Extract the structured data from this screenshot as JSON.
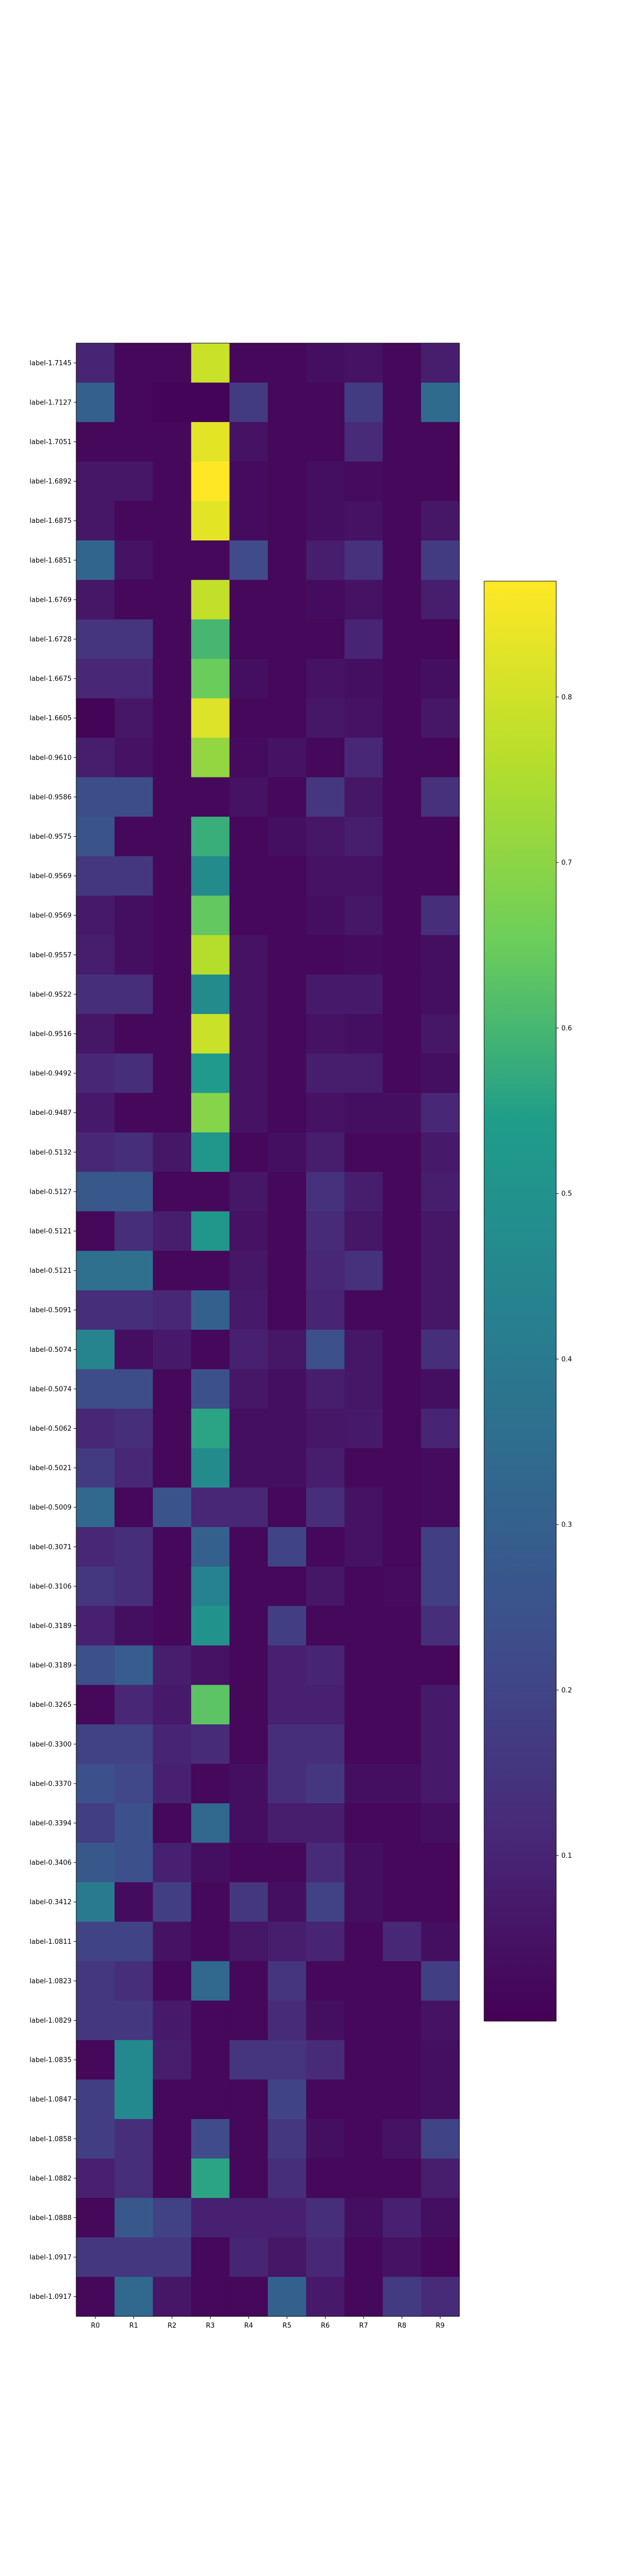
{
  "chart_data": {
    "type": "heatmap",
    "title": "",
    "xlabel": "",
    "ylabel": "",
    "colormap": "viridis",
    "colorbar": {
      "min": 0.0,
      "max": 0.87,
      "ticks": [
        "0.1",
        "0.2",
        "0.3",
        "0.4",
        "0.5",
        "0.6",
        "0.7",
        "0.8"
      ]
    },
    "columns": [
      "R0",
      "R1",
      "R2",
      "R3",
      "R4",
      "R5",
      "R6",
      "R7",
      "R8",
      "R9"
    ],
    "rows": [
      "label-1.7145",
      "label-1.7127",
      "label-1.7051",
      "label-1.6892",
      "label-1.6875",
      "label-1.6851",
      "label-1.6769",
      "label-1.6728",
      "label-1.6675",
      "label-1.6605",
      "label-0.9610",
      "label-0.9586",
      "label-0.9575",
      "label-0.9569",
      "label-0.9569",
      "label-0.9557",
      "label-0.9522",
      "label-0.9516",
      "label-0.9492",
      "label-0.9487",
      "label-0.5132",
      "label-0.5127",
      "label-0.5121",
      "label-0.5121",
      "label-0.5091",
      "label-0.5074",
      "label-0.5074",
      "label-0.5062",
      "label-0.5021",
      "label-0.5009",
      "label-0.3071",
      "label-0.3106",
      "label-0.3189",
      "label-0.3189",
      "label-0.3265",
      "label-0.3300",
      "label-0.3370",
      "label-0.3394",
      "label-0.3406",
      "label-0.3412",
      "label-1.0811",
      "label-1.0823",
      "label-1.0829",
      "label-1.0835",
      "label-1.0847",
      "label-1.0858",
      "label-1.0882",
      "label-1.0888",
      "label-1.0917",
      "label-1.0917"
    ],
    "values": [
      [
        0.1,
        0.02,
        0.02,
        0.79,
        0.02,
        0.02,
        0.04,
        0.05,
        0.02,
        0.08
      ],
      [
        0.3,
        0.02,
        0.01,
        0.01,
        0.17,
        0.02,
        0.02,
        0.17,
        0.02,
        0.34
      ],
      [
        0.02,
        0.02,
        0.02,
        0.83,
        0.05,
        0.02,
        0.02,
        0.12,
        0.02,
        0.02
      ],
      [
        0.06,
        0.06,
        0.02,
        0.87,
        0.03,
        0.02,
        0.04,
        0.03,
        0.02,
        0.02
      ],
      [
        0.06,
        0.02,
        0.02,
        0.83,
        0.03,
        0.02,
        0.04,
        0.05,
        0.02,
        0.06
      ],
      [
        0.32,
        0.05,
        0.02,
        0.02,
        0.22,
        0.02,
        0.08,
        0.14,
        0.02,
        0.17
      ],
      [
        0.06,
        0.02,
        0.02,
        0.78,
        0.02,
        0.02,
        0.03,
        0.05,
        0.02,
        0.08
      ],
      [
        0.15,
        0.15,
        0.02,
        0.6,
        0.02,
        0.02,
        0.02,
        0.1,
        0.02,
        0.02
      ],
      [
        0.11,
        0.11,
        0.02,
        0.65,
        0.04,
        0.02,
        0.05,
        0.04,
        0.02,
        0.04
      ],
      [
        0.01,
        0.06,
        0.02,
        0.82,
        0.02,
        0.02,
        0.06,
        0.05,
        0.02,
        0.06
      ],
      [
        0.08,
        0.05,
        0.02,
        0.71,
        0.03,
        0.05,
        0.02,
        0.11,
        0.02,
        0.02
      ],
      [
        0.23,
        0.23,
        0.02,
        0.02,
        0.05,
        0.02,
        0.16,
        0.06,
        0.02,
        0.14
      ],
      [
        0.25,
        0.02,
        0.02,
        0.58,
        0.02,
        0.04,
        0.06,
        0.08,
        0.02,
        0.02
      ],
      [
        0.16,
        0.16,
        0.02,
        0.47,
        0.02,
        0.02,
        0.05,
        0.05,
        0.02,
        0.02
      ],
      [
        0.07,
        0.04,
        0.02,
        0.64,
        0.02,
        0.02,
        0.04,
        0.06,
        0.02,
        0.13
      ],
      [
        0.08,
        0.04,
        0.02,
        0.76,
        0.05,
        0.02,
        0.02,
        0.03,
        0.02,
        0.04
      ],
      [
        0.13,
        0.13,
        0.02,
        0.47,
        0.05,
        0.02,
        0.07,
        0.07,
        0.02,
        0.04
      ],
      [
        0.06,
        0.02,
        0.02,
        0.79,
        0.05,
        0.02,
        0.05,
        0.04,
        0.02,
        0.06
      ],
      [
        0.11,
        0.13,
        0.02,
        0.53,
        0.05,
        0.02,
        0.08,
        0.08,
        0.02,
        0.04
      ],
      [
        0.07,
        0.02,
        0.02,
        0.69,
        0.05,
        0.02,
        0.05,
        0.04,
        0.04,
        0.11
      ],
      [
        0.11,
        0.13,
        0.06,
        0.52,
        0.02,
        0.04,
        0.08,
        0.02,
        0.02,
        0.07
      ],
      [
        0.27,
        0.27,
        0.02,
        0.02,
        0.06,
        0.02,
        0.14,
        0.08,
        0.02,
        0.08
      ],
      [
        0.02,
        0.13,
        0.08,
        0.52,
        0.05,
        0.02,
        0.12,
        0.06,
        0.02,
        0.06
      ],
      [
        0.36,
        0.36,
        0.02,
        0.02,
        0.06,
        0.02,
        0.11,
        0.14,
        0.02,
        0.06
      ],
      [
        0.13,
        0.13,
        0.11,
        0.3,
        0.07,
        0.02,
        0.1,
        0.02,
        0.02,
        0.06
      ],
      [
        0.44,
        0.04,
        0.07,
        0.02,
        0.09,
        0.06,
        0.24,
        0.06,
        0.02,
        0.13
      ],
      [
        0.23,
        0.23,
        0.02,
        0.24,
        0.06,
        0.04,
        0.08,
        0.06,
        0.02,
        0.04
      ],
      [
        0.11,
        0.13,
        0.02,
        0.56,
        0.04,
        0.04,
        0.06,
        0.07,
        0.02,
        0.1
      ],
      [
        0.17,
        0.11,
        0.02,
        0.47,
        0.04,
        0.04,
        0.08,
        0.02,
        0.02,
        0.03
      ],
      [
        0.33,
        0.02,
        0.25,
        0.11,
        0.11,
        0.02,
        0.13,
        0.05,
        0.02,
        0.03
      ],
      [
        0.11,
        0.13,
        0.02,
        0.3,
        0.02,
        0.2,
        0.02,
        0.05,
        0.02,
        0.18
      ],
      [
        0.16,
        0.13,
        0.02,
        0.43,
        0.02,
        0.02,
        0.06,
        0.02,
        0.03,
        0.18
      ],
      [
        0.09,
        0.04,
        0.02,
        0.5,
        0.02,
        0.18,
        0.02,
        0.02,
        0.02,
        0.13
      ],
      [
        0.24,
        0.29,
        0.08,
        0.05,
        0.02,
        0.09,
        0.1,
        0.02,
        0.02,
        0.02
      ],
      [
        0.02,
        0.11,
        0.07,
        0.63,
        0.02,
        0.09,
        0.09,
        0.02,
        0.02,
        0.07
      ],
      [
        0.19,
        0.19,
        0.1,
        0.12,
        0.02,
        0.13,
        0.13,
        0.02,
        0.02,
        0.07
      ],
      [
        0.24,
        0.21,
        0.09,
        0.02,
        0.04,
        0.13,
        0.16,
        0.04,
        0.04,
        0.07
      ],
      [
        0.18,
        0.24,
        0.02,
        0.33,
        0.04,
        0.08,
        0.08,
        0.02,
        0.02,
        0.04
      ],
      [
        0.27,
        0.24,
        0.09,
        0.04,
        0.02,
        0.02,
        0.12,
        0.04,
        0.02,
        0.02
      ],
      [
        0.4,
        0.03,
        0.18,
        0.02,
        0.16,
        0.04,
        0.19,
        0.04,
        0.02,
        0.02
      ],
      [
        0.2,
        0.2,
        0.05,
        0.02,
        0.06,
        0.08,
        0.1,
        0.02,
        0.11,
        0.04
      ],
      [
        0.16,
        0.13,
        0.02,
        0.33,
        0.02,
        0.15,
        0.02,
        0.02,
        0.02,
        0.18
      ],
      [
        0.16,
        0.16,
        0.07,
        0.02,
        0.02,
        0.12,
        0.04,
        0.02,
        0.02,
        0.05
      ],
      [
        0.02,
        0.46,
        0.08,
        0.02,
        0.15,
        0.15,
        0.12,
        0.02,
        0.02,
        0.04
      ],
      [
        0.18,
        0.46,
        0.02,
        0.02,
        0.02,
        0.2,
        0.02,
        0.02,
        0.02,
        0.04
      ],
      [
        0.18,
        0.13,
        0.02,
        0.22,
        0.02,
        0.16,
        0.04,
        0.02,
        0.05,
        0.2
      ],
      [
        0.09,
        0.13,
        0.02,
        0.56,
        0.02,
        0.13,
        0.02,
        0.02,
        0.02,
        0.08
      ],
      [
        0.02,
        0.27,
        0.19,
        0.09,
        0.09,
        0.09,
        0.13,
        0.04,
        0.09,
        0.04
      ],
      [
        0.16,
        0.16,
        0.16,
        0.02,
        0.1,
        0.06,
        0.11,
        0.02,
        0.05,
        0.02
      ],
      [
        0.02,
        0.33,
        0.06,
        0.02,
        0.02,
        0.3,
        0.07,
        0.02,
        0.17,
        0.12
      ]
    ]
  }
}
